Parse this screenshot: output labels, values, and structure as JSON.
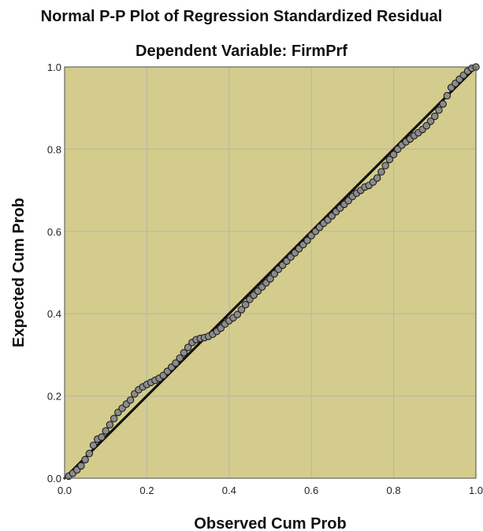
{
  "chart_data": {
    "type": "scatter",
    "title": "Normal P-P Plot of Regression Standardized Residual",
    "subtitle": "Dependent Variable: FirmPrf",
    "xlabel": "Observed Cum Prob",
    "ylabel": "Expected Cum Prob",
    "xlim": [
      0.0,
      1.0
    ],
    "ylim": [
      0.0,
      1.0
    ],
    "xticks": [
      "0.0",
      "0.2",
      "0.4",
      "0.6",
      "0.8",
      "1.0"
    ],
    "yticks": [
      "0.0",
      "0.2",
      "0.4",
      "0.6",
      "0.8",
      "1.0"
    ],
    "grid": true,
    "reference_line": [
      [
        0.0,
        0.0
      ],
      [
        1.0,
        1.0
      ]
    ],
    "plot_background": "#d4cc8c",
    "grid_color": "#b8b8b0",
    "marker_fill": "#8c8c8c",
    "marker_stroke": "#1e1e1e",
    "line_color": "#111111",
    "points": [
      [
        0.01,
        0.005
      ],
      [
        0.02,
        0.012
      ],
      [
        0.03,
        0.02
      ],
      [
        0.04,
        0.03
      ],
      [
        0.05,
        0.045
      ],
      [
        0.06,
        0.06
      ],
      [
        0.07,
        0.08
      ],
      [
        0.08,
        0.095
      ],
      [
        0.09,
        0.1
      ],
      [
        0.1,
        0.115
      ],
      [
        0.11,
        0.13
      ],
      [
        0.12,
        0.145
      ],
      [
        0.13,
        0.16
      ],
      [
        0.14,
        0.17
      ],
      [
        0.15,
        0.18
      ],
      [
        0.16,
        0.19
      ],
      [
        0.17,
        0.205
      ],
      [
        0.18,
        0.215
      ],
      [
        0.19,
        0.222
      ],
      [
        0.2,
        0.228
      ],
      [
        0.21,
        0.233
      ],
      [
        0.22,
        0.238
      ],
      [
        0.23,
        0.243
      ],
      [
        0.24,
        0.25
      ],
      [
        0.25,
        0.26
      ],
      [
        0.26,
        0.27
      ],
      [
        0.27,
        0.28
      ],
      [
        0.28,
        0.292
      ],
      [
        0.29,
        0.305
      ],
      [
        0.3,
        0.318
      ],
      [
        0.31,
        0.33
      ],
      [
        0.32,
        0.337
      ],
      [
        0.33,
        0.34
      ],
      [
        0.34,
        0.342
      ],
      [
        0.35,
        0.345
      ],
      [
        0.36,
        0.35
      ],
      [
        0.37,
        0.357
      ],
      [
        0.38,
        0.365
      ],
      [
        0.39,
        0.375
      ],
      [
        0.4,
        0.383
      ],
      [
        0.41,
        0.39
      ],
      [
        0.42,
        0.398
      ],
      [
        0.43,
        0.41
      ],
      [
        0.44,
        0.422
      ],
      [
        0.45,
        0.435
      ],
      [
        0.46,
        0.445
      ],
      [
        0.47,
        0.455
      ],
      [
        0.48,
        0.465
      ],
      [
        0.49,
        0.475
      ],
      [
        0.5,
        0.485
      ],
      [
        0.51,
        0.497
      ],
      [
        0.52,
        0.508
      ],
      [
        0.53,
        0.518
      ],
      [
        0.54,
        0.528
      ],
      [
        0.55,
        0.538
      ],
      [
        0.56,
        0.548
      ],
      [
        0.57,
        0.558
      ],
      [
        0.58,
        0.568
      ],
      [
        0.59,
        0.578
      ],
      [
        0.6,
        0.59
      ],
      [
        0.61,
        0.6
      ],
      [
        0.62,
        0.61
      ],
      [
        0.63,
        0.62
      ],
      [
        0.64,
        0.628
      ],
      [
        0.65,
        0.638
      ],
      [
        0.66,
        0.648
      ],
      [
        0.67,
        0.657
      ],
      [
        0.68,
        0.666
      ],
      [
        0.69,
        0.675
      ],
      [
        0.7,
        0.685
      ],
      [
        0.71,
        0.693
      ],
      [
        0.72,
        0.7
      ],
      [
        0.73,
        0.708
      ],
      [
        0.74,
        0.712
      ],
      [
        0.75,
        0.72
      ],
      [
        0.76,
        0.73
      ],
      [
        0.77,
        0.745
      ],
      [
        0.78,
        0.76
      ],
      [
        0.79,
        0.775
      ],
      [
        0.8,
        0.787
      ],
      [
        0.81,
        0.8
      ],
      [
        0.82,
        0.81
      ],
      [
        0.83,
        0.818
      ],
      [
        0.84,
        0.825
      ],
      [
        0.85,
        0.833
      ],
      [
        0.86,
        0.84
      ],
      [
        0.87,
        0.848
      ],
      [
        0.88,
        0.857
      ],
      [
        0.89,
        0.868
      ],
      [
        0.9,
        0.88
      ],
      [
        0.91,
        0.895
      ],
      [
        0.92,
        0.91
      ],
      [
        0.93,
        0.93
      ],
      [
        0.94,
        0.95
      ],
      [
        0.95,
        0.96
      ],
      [
        0.96,
        0.97
      ],
      [
        0.97,
        0.98
      ],
      [
        0.98,
        0.99
      ],
      [
        0.99,
        0.997
      ],
      [
        1.0,
        1.0
      ]
    ]
  }
}
